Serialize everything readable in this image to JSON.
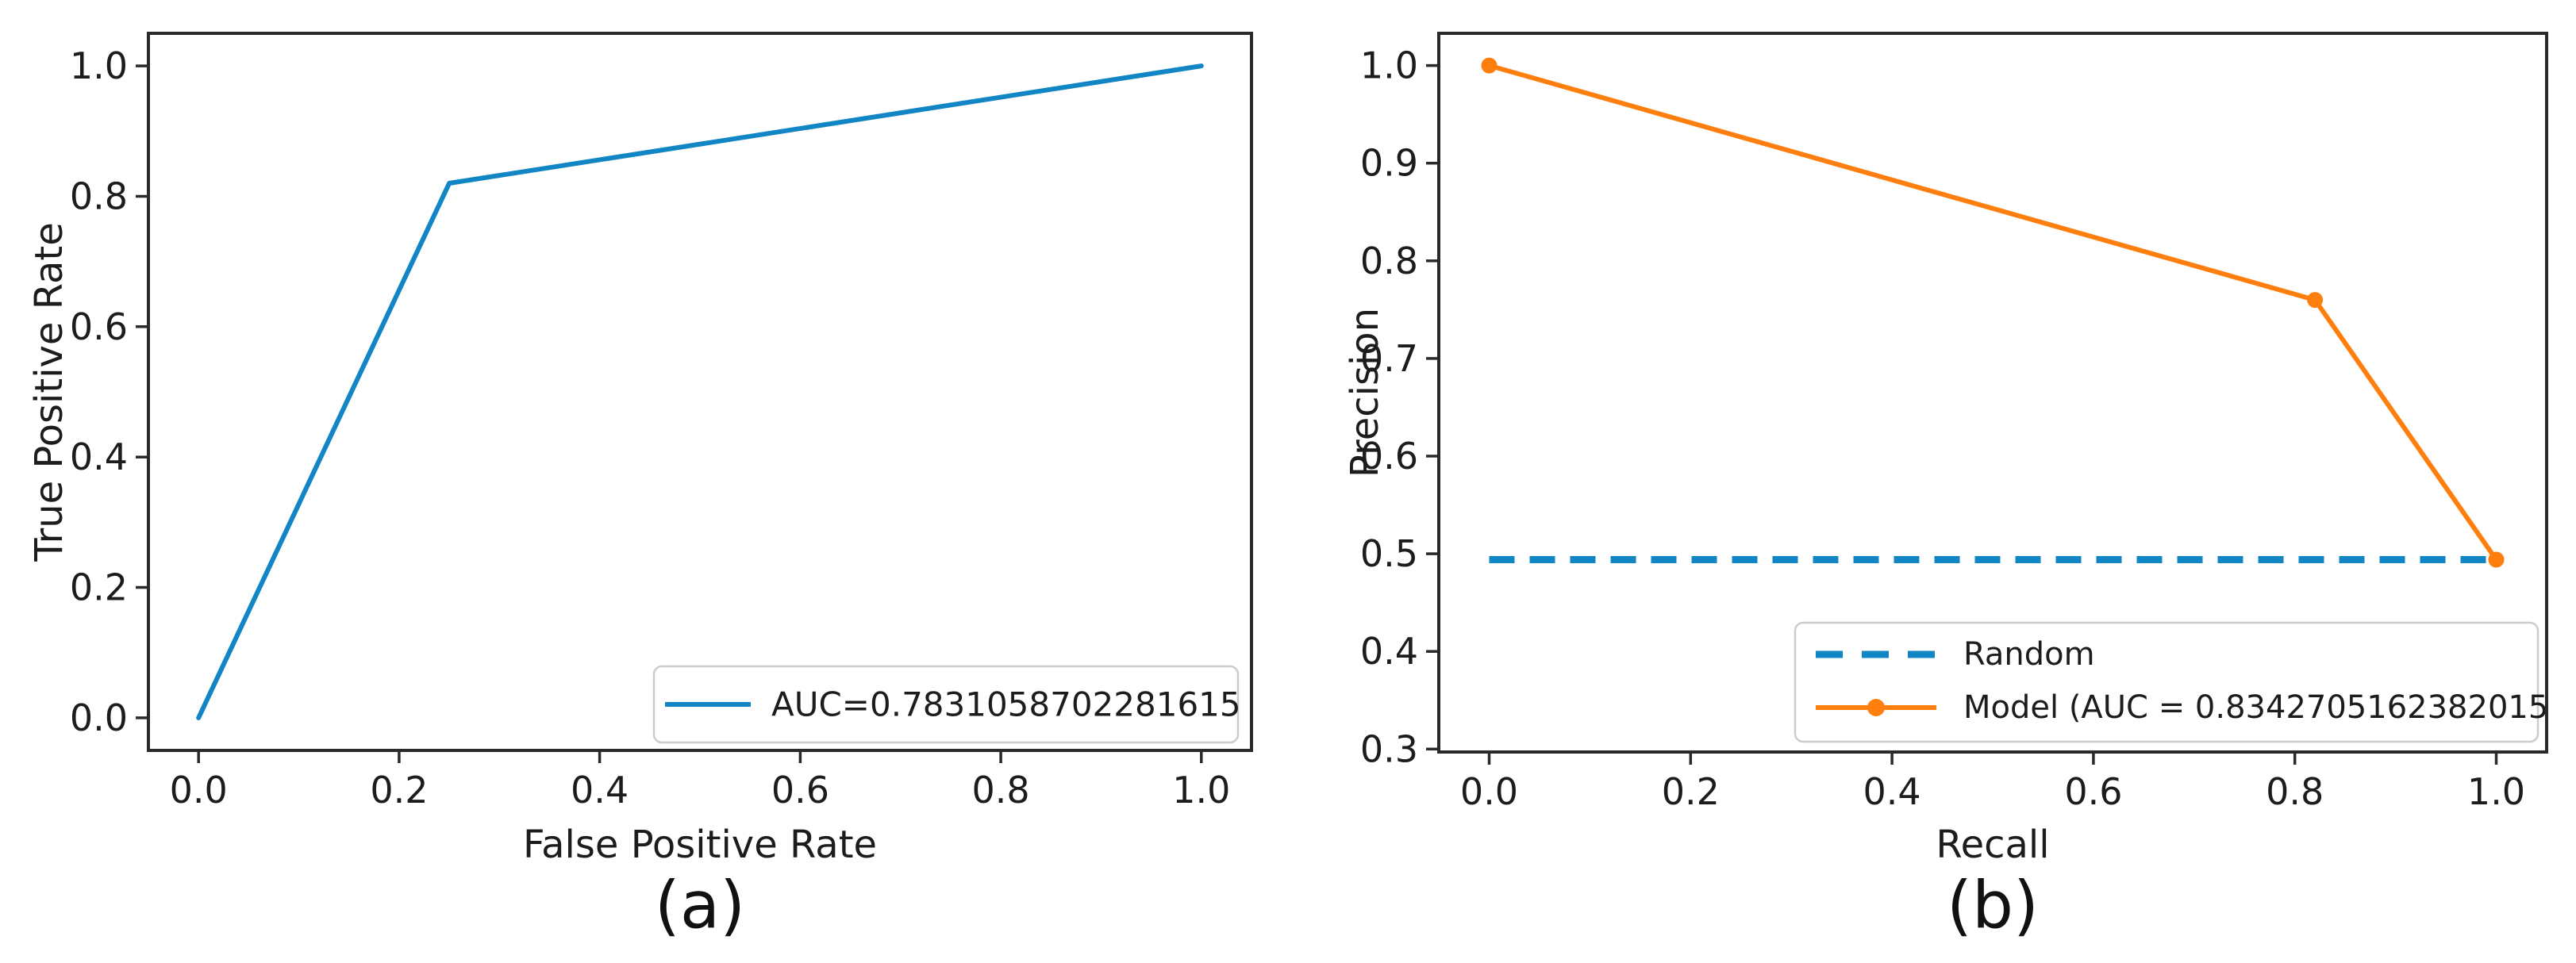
{
  "page": {
    "background": "#ffffff"
  },
  "colors": {
    "blue": "#1286c5",
    "orange": "#ff7f0e",
    "spine": "#2a2a2a",
    "text": "#1c1c1c",
    "legend_border": "#cccccc"
  },
  "chart_data": [
    {
      "id": "roc-curve-chart",
      "type": "line",
      "caption": "(a)",
      "title": "",
      "xlabel": "False Positive Rate",
      "ylabel": "True Positive Rate",
      "xlim": [
        -0.05,
        1.05
      ],
      "ylim": [
        -0.05,
        1.05
      ],
      "grid": false,
      "legend_position": "lower right",
      "xticks": {
        "values": [
          0.0,
          0.2,
          0.4,
          0.6,
          0.8,
          1.0
        ],
        "labels": [
          "0.0",
          "0.2",
          "0.4",
          "0.6",
          "0.8",
          "1.0"
        ]
      },
      "yticks": {
        "values": [
          0.0,
          0.2,
          0.4,
          0.6,
          0.8,
          1.0
        ],
        "labels": [
          "0.0",
          "0.2",
          "0.4",
          "0.6",
          "0.8",
          "1.0"
        ]
      },
      "series": [
        {
          "name": "roc-curve",
          "legend_label": "AUC=0.7831058702281615",
          "color": "#1286c5",
          "linestyle": "solid",
          "marker": false,
          "points": [
            [
              0.0,
              0.0
            ],
            [
              0.25,
              0.82
            ],
            [
              1.0,
              1.0
            ]
          ]
        }
      ]
    },
    {
      "id": "precision-recall-chart",
      "type": "line",
      "caption": "(b)",
      "title": "",
      "xlabel": "Recall",
      "ylabel": "Precision",
      "xlim": [
        -0.05,
        1.05
      ],
      "ylim": [
        0.297,
        1.033
      ],
      "grid": false,
      "legend_position": "lower right",
      "xticks": {
        "values": [
          0.0,
          0.2,
          0.4,
          0.6,
          0.8,
          1.0
        ],
        "labels": [
          "0.0",
          "0.2",
          "0.4",
          "0.6",
          "0.8",
          "1.0"
        ]
      },
      "yticks": {
        "values": [
          0.3,
          0.4,
          0.5,
          0.6,
          0.7,
          0.8,
          0.9,
          1.0
        ],
        "labels": [
          "0.3",
          "0.4",
          "0.5",
          "0.6",
          "0.7",
          "0.8",
          "0.9",
          "1.0"
        ]
      },
      "series": [
        {
          "name": "random-baseline",
          "legend_label": "Random",
          "color": "#1286c5",
          "linestyle": "dashed",
          "marker": false,
          "points": [
            [
              0.0,
              0.494
            ],
            [
              1.0,
              0.494
            ]
          ]
        },
        {
          "name": "model-pr-curve",
          "legend_label": "Model (AUC = 0.8342705162382015",
          "color": "#ff7f0e",
          "linestyle": "solid",
          "marker": true,
          "points": [
            [
              0.0,
              1.0
            ],
            [
              0.82,
              0.76
            ],
            [
              1.0,
              0.494
            ]
          ]
        }
      ]
    }
  ]
}
